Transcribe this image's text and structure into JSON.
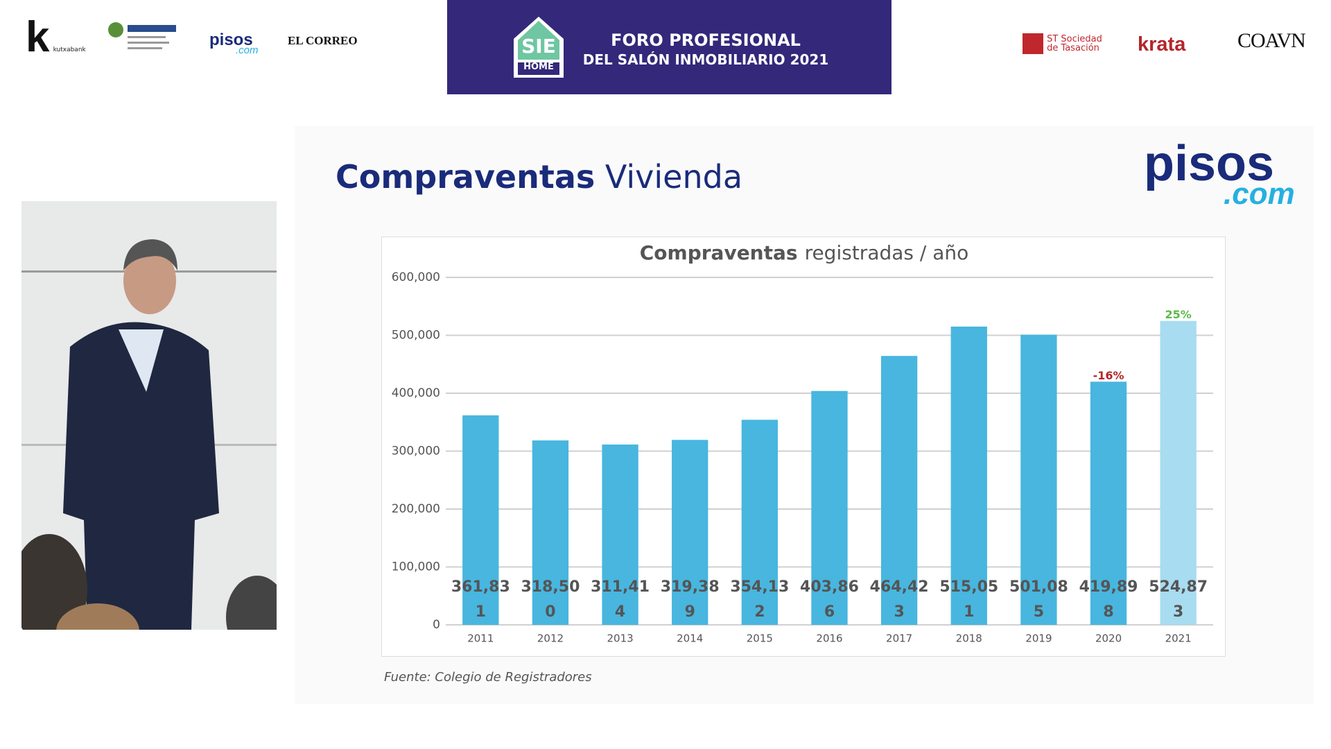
{
  "header": {
    "sponsors_left": [
      "kutxabank",
      "pisos",
      ".com",
      "EL CORREO"
    ],
    "event_badge": [
      "SIE",
      "HOME"
    ],
    "event_title": [
      "FORO PROFESIONAL",
      "DEL SALÓN INMOBILIARIO 2021"
    ],
    "sponsors_right": [
      "ST Sociedad",
      "de Tasación",
      "krata",
      "COAVN"
    ]
  },
  "slide": {
    "title_bold": "Compraventas",
    "title_rest": "Vivienda",
    "logo": [
      "pisos",
      ".com"
    ],
    "source": "Fuente: Colegio de Registradores"
  },
  "chart_data": {
    "type": "bar",
    "title_bold": "Compraventas",
    "title_rest": "registradas / año",
    "categories": [
      "2011",
      "2012",
      "2013",
      "2014",
      "2015",
      "2016",
      "2017",
      "2018",
      "2019",
      "2020",
      "2021"
    ],
    "values": [
      361831,
      318500,
      311414,
      319389,
      354132,
      403866,
      464423,
      515051,
      501085,
      419898,
      524873
    ],
    "value_labels": [
      "361,831",
      "318,500",
      "311,414",
      "319,389",
      "354,132",
      "403,866",
      "464,423",
      "515,051",
      "501,085",
      "419,898",
      "524,873"
    ],
    "colors": [
      "#48b6df",
      "#48b6df",
      "#48b6df",
      "#48b6df",
      "#48b6df",
      "#48b6df",
      "#48b6df",
      "#48b6df",
      "#48b6df",
      "#48b6df",
      "#a8dcf0"
    ],
    "value_annotations": [
      null,
      null,
      null,
      null,
      null,
      null,
      null,
      null,
      null,
      "-16%",
      "25%"
    ],
    "value_annotation_colors": [
      null,
      null,
      null,
      null,
      null,
      null,
      null,
      null,
      null,
      "#b3262a",
      "#5cb84a"
    ],
    "ylim": [
      0,
      600000
    ],
    "yticks": [
      0,
      {
        "value": 100000,
        "label": "100,000"
      },
      {
        "value": 200000,
        "label": "200,000"
      },
      {
        "value": 300000,
        "label": "300,000"
      },
      {
        "value": 400000,
        "label": "400,000"
      },
      {
        "value": 500000,
        "label": "500,000"
      },
      {
        "value": 600000,
        "label": "600,000"
      }
    ],
    "grid": true
  }
}
